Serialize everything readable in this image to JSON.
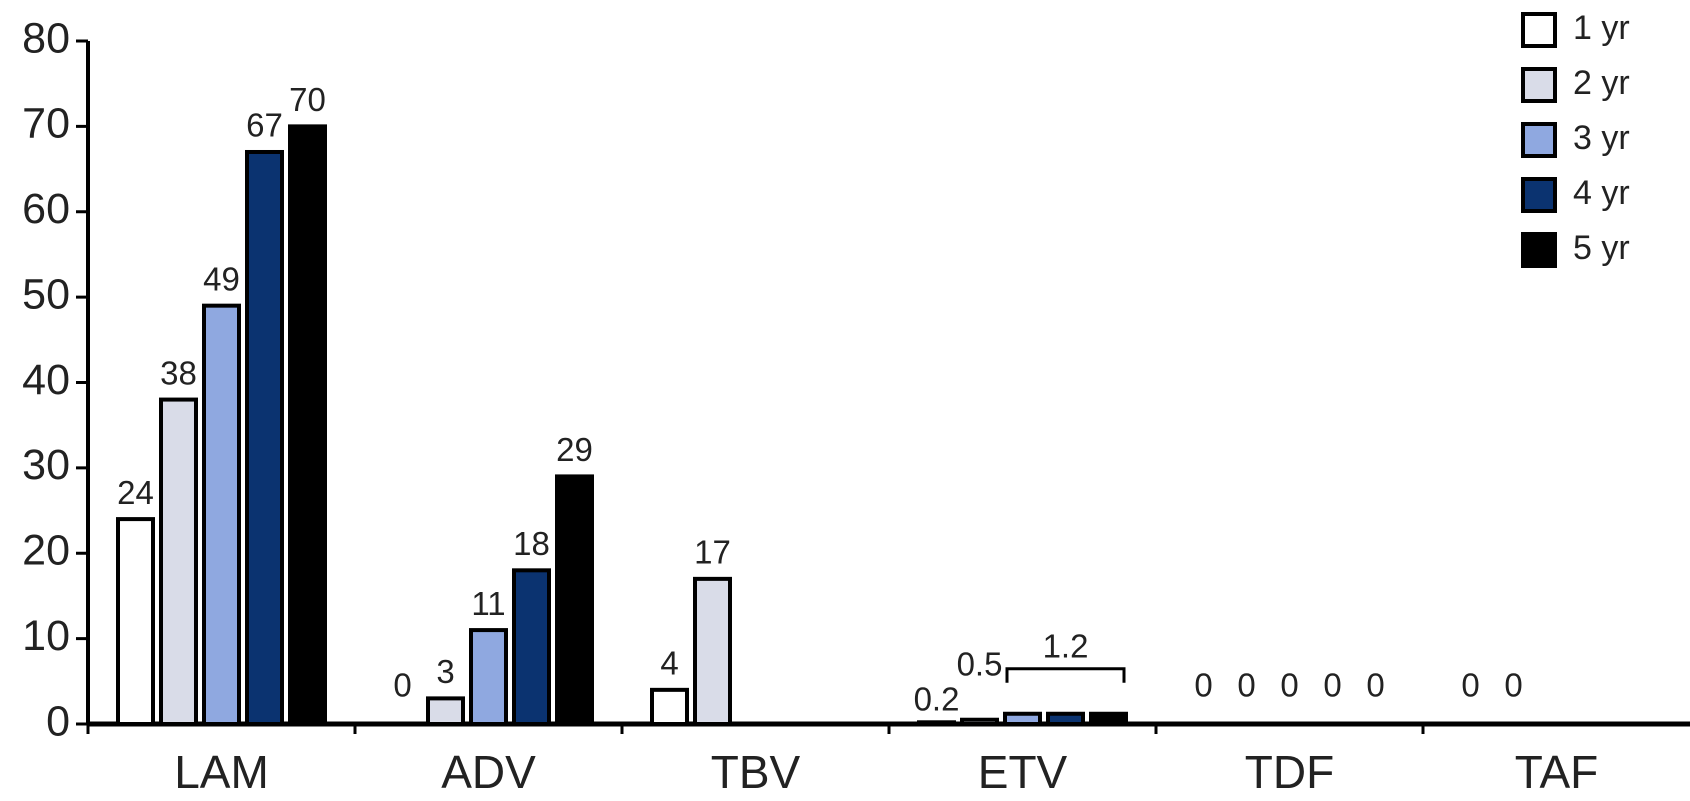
{
  "chart_data": {
    "type": "bar",
    "categories": [
      "LAM",
      "ADV",
      "TBV",
      "ETV",
      "TDF",
      "TAF"
    ],
    "series": [
      {
        "name": "1 yr",
        "color": "#ffffff",
        "values": [
          24,
          0,
          4,
          0.2,
          0,
          0
        ]
      },
      {
        "name": "2 yr",
        "color": "#d9dce8",
        "values": [
          38,
          3,
          17,
          0.5,
          0,
          0
        ]
      },
      {
        "name": "3 yr",
        "color": "#8fa8e0",
        "values": [
          49,
          11,
          null,
          1.2,
          0,
          null
        ]
      },
      {
        "name": "4 yr",
        "color": "#0b3370",
        "values": [
          67,
          18,
          null,
          1.2,
          0,
          null
        ]
      },
      {
        "name": "5 yr",
        "color": "#000000",
        "values": [
          70,
          29,
          null,
          1.2,
          0,
          null
        ]
      }
    ],
    "ylim": [
      0,
      80
    ],
    "yticks": [
      0,
      10,
      20,
      30,
      40,
      50,
      60,
      70,
      80
    ],
    "legend": "top-right"
  }
}
